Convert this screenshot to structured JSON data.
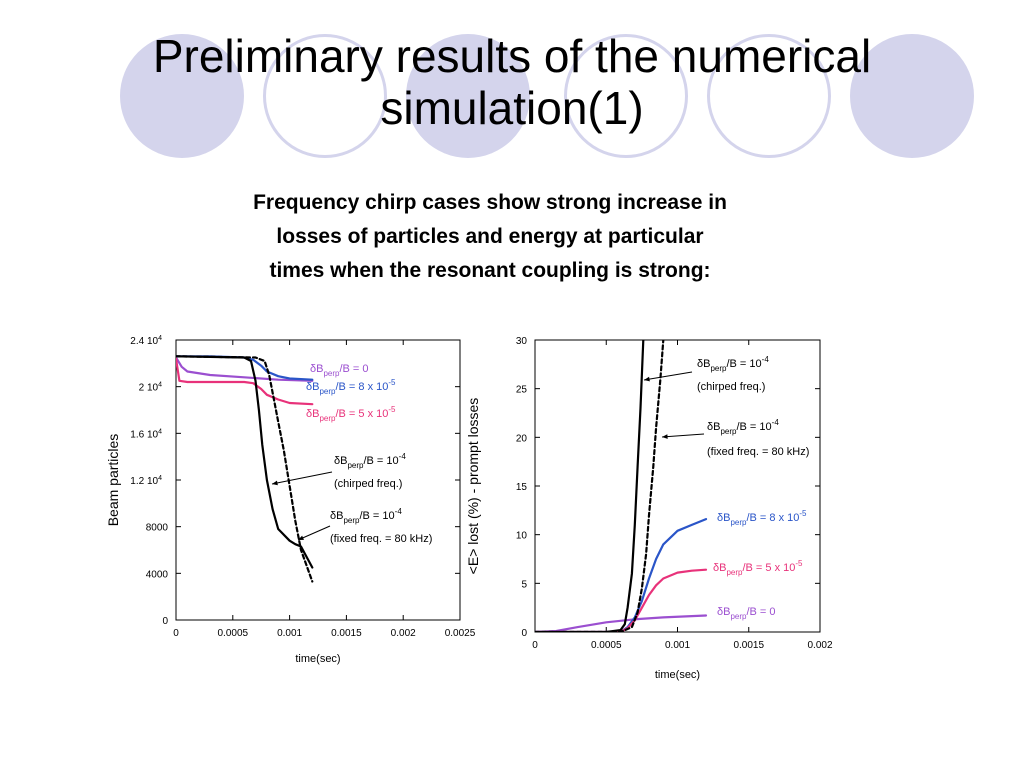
{
  "slide": {
    "title_line1": "Preliminary results of the numerical",
    "title_line2": "simulation(1)",
    "subtitle_line1": "Frequency chirp cases show strong increase in",
    "subtitle_line2": "losses of particles and energy at particular",
    "subtitle_line3": "times when the resonant coupling is strong:",
    "accent_color": "#d4d4ec"
  },
  "chart_data": [
    {
      "type": "line",
      "xlabel": "time(sec)",
      "ylabel": "Beam particles",
      "xlim": [
        0,
        0.0025
      ],
      "ylim": [
        0,
        24000
      ],
      "x_ticks": [
        "0",
        "0.0005",
        "0.001",
        "0.0015",
        "0.002",
        "0.0025"
      ],
      "y_ticks": [
        "0",
        "4000",
        "8000",
        "1.2 10",
        "1.6 10",
        "2 10",
        "2.4 10"
      ],
      "y_tick_exp": "4",
      "series": [
        {
          "name": "δB/B = 0",
          "color": "#9b4fd0",
          "dash": "",
          "x": [
            0,
            5e-05,
            0.0001,
            0.0003,
            0.0006,
            0.0009,
            0.0012
          ],
          "y": [
            22500,
            21700,
            21300,
            21000,
            20800,
            20600,
            20500
          ]
        },
        {
          "name": "δB/B = 8 x 10",
          "color": "#2a55c8",
          "dash": "",
          "x": [
            0,
            0.0003,
            0.0006,
            0.00068,
            0.00075,
            0.0008,
            0.0009,
            0.001,
            0.0012
          ],
          "y": [
            22600,
            22600,
            22500,
            22300,
            21800,
            21300,
            20900,
            20700,
            20600
          ]
        },
        {
          "name": "δB/B = 5 x 10",
          "color": "#e8327a",
          "dash": "",
          "x": [
            0,
            3e-05,
            0.0001,
            0.0006,
            0.00068,
            0.00075,
            0.0008,
            0.0009,
            0.001,
            0.0012
          ],
          "y": [
            22400,
            20500,
            20400,
            20400,
            20300,
            19800,
            19300,
            18900,
            18600,
            18500
          ]
        },
        {
          "name": "δB/B = 10 (chirped freq.)",
          "color": "#000000",
          "dash": "",
          "x": [
            0,
            0.0006,
            0.00066,
            0.0007,
            0.00073,
            0.00076,
            0.0008,
            0.00085,
            0.0009,
            0.001,
            0.00105,
            0.0011,
            0.0012
          ],
          "y": [
            22600,
            22500,
            22200,
            20500,
            18000,
            15000,
            12000,
            9500,
            7800,
            6800,
            6500,
            6300,
            4500
          ]
        },
        {
          "name": "δB/B = 10 (fixed freq. = 80 kHz)",
          "color": "#000000",
          "dash": "4,3",
          "x": [
            0,
            0.0007,
            0.00078,
            0.00082,
            0.00086,
            0.0009,
            0.00095,
            0.001,
            0.00105,
            0.0011,
            0.0012
          ],
          "y": [
            22600,
            22500,
            22200,
            21000,
            19000,
            17000,
            14500,
            11500,
            8500,
            6000,
            3300
          ]
        }
      ],
      "labels": [
        {
          "base": "δB",
          "sub": "perp",
          "rest": "/B = 0",
          "sup": "",
          "color": "#9b4fd0"
        },
        {
          "base": "δB",
          "sub": "perp",
          "rest": "/B = 8 x 10",
          "sup": "-5",
          "color": "#2a55c8"
        },
        {
          "base": "δB",
          "sub": "perp",
          "rest": "/B = 5 x 10",
          "sup": "-5",
          "color": "#e8327a"
        },
        {
          "base": "δB",
          "sub": "perp",
          "rest": "/B = 10",
          "sup": "-4",
          "color": "#000000",
          "line2": "(chirped freq.)"
        },
        {
          "base": "δB",
          "sub": "perp",
          "rest": "/B = 10",
          "sup": "-4",
          "color": "#000000",
          "line2": "(fixed freq. = 80 kHz)"
        }
      ]
    },
    {
      "type": "line",
      "xlabel": "time(sec)",
      "ylabel": "<E> lost (%) - prompt losses",
      "xlim": [
        0,
        0.002
      ],
      "ylim": [
        0,
        30
      ],
      "x_ticks": [
        "0",
        "0.0005",
        "0.001",
        "0.0015",
        "0.002"
      ],
      "y_ticks": [
        "0",
        "5",
        "10",
        "15",
        "20",
        "25",
        "30"
      ],
      "series": [
        {
          "name": "δB/B = 0",
          "color": "#9b4fd0",
          "dash": "",
          "x": [
            0,
            0.00015,
            0.0003,
            0.0005,
            0.0007,
            0.0009,
            0.0012
          ],
          "y": [
            0,
            0.1,
            0.5,
            1.0,
            1.3,
            1.5,
            1.7
          ]
        },
        {
          "name": "δB/B = 8 x 10",
          "color": "#2a55c8",
          "dash": "",
          "x": [
            0,
            0.0006,
            0.00065,
            0.0007,
            0.00075,
            0.0008,
            0.00085,
            0.0009,
            0.001,
            0.0011,
            0.0012
          ],
          "y": [
            0,
            0,
            0.5,
            1.5,
            3.2,
            5.5,
            7.5,
            9.0,
            10.4,
            11.0,
            11.6
          ]
        },
        {
          "name": "δB/B = 5 x 10",
          "color": "#e8327a",
          "dash": "",
          "x": [
            0,
            0.0006,
            0.00065,
            0.0007,
            0.00075,
            0.0008,
            0.00085,
            0.0009,
            0.001,
            0.0011,
            0.0012
          ],
          "y": [
            0,
            0,
            0.4,
            1.2,
            2.5,
            3.8,
            4.8,
            5.5,
            6.1,
            6.3,
            6.4
          ]
        },
        {
          "name": "δB/B = 10 (chirped freq.)",
          "color": "#000000",
          "dash": "",
          "x": [
            0,
            0.0005,
            0.0006,
            0.00063,
            0.00065,
            0.00068,
            0.0007,
            0.00072,
            0.00074,
            0.00076
          ],
          "y": [
            0,
            0,
            0.2,
            0.8,
            2.5,
            6,
            11,
            17,
            23,
            30
          ]
        },
        {
          "name": "δB/B = 10 (fixed freq. = 80 kHz)",
          "color": "#000000",
          "dash": "4,3",
          "x": [
            0,
            0.0006,
            0.00068,
            0.00072,
            0.00075,
            0.00078,
            0.0008,
            0.00083,
            0.00085,
            0.00088,
            0.0009
          ],
          "y": [
            0,
            0,
            0.5,
            2.0,
            4.5,
            8,
            12,
            17,
            21,
            26,
            30
          ]
        }
      ],
      "labels": [
        {
          "base": "δB",
          "sub": "perp",
          "rest": "/B = 10",
          "sup": "-4",
          "color": "#000000",
          "line2": "(chirped freq.)"
        },
        {
          "base": "δB",
          "sub": "perp",
          "rest": "/B = 10",
          "sup": "-4",
          "color": "#000000",
          "line2": "(fixed freq. = 80 kHz)"
        },
        {
          "base": "δB",
          "sub": "perp",
          "rest": "/B = 8 x 10",
          "sup": "-5",
          "color": "#2a55c8"
        },
        {
          "base": "δB",
          "sub": "perp",
          "rest": "/B = 5 x 10",
          "sup": "-5",
          "color": "#e8327a"
        },
        {
          "base": "δB",
          "sub": "perp",
          "rest": "/B = 0",
          "sup": "",
          "color": "#9b4fd0"
        }
      ]
    }
  ]
}
